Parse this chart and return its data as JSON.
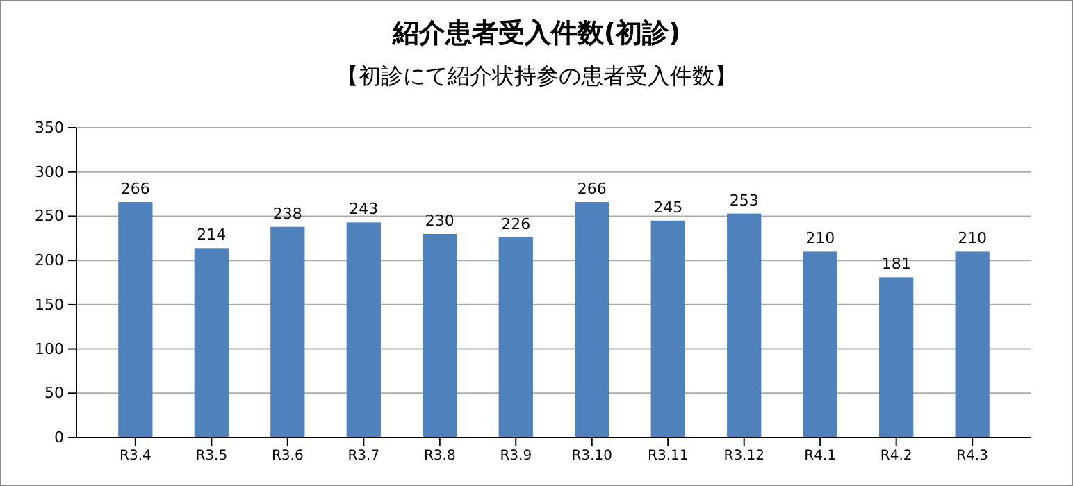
{
  "chart_data": {
    "type": "bar",
    "title": "紹介患者受入件数(初診)",
    "subtitle": "【初診にて紹介状持参の患者受入件数】",
    "categories": [
      "R3.4",
      "R3.5",
      "R3.6",
      "R3.7",
      "R3.8",
      "R3.9",
      "R3.10",
      "R3.11",
      "R3.12",
      "R4.1",
      "R4.2",
      "R4.3"
    ],
    "values": [
      266,
      214,
      238,
      243,
      230,
      226,
      266,
      245,
      253,
      210,
      181,
      210
    ],
    "color": "#4f81bd",
    "ylim": [
      0,
      350
    ],
    "yticks": [
      0,
      50,
      100,
      150,
      200,
      250,
      300,
      350
    ],
    "grid": "y",
    "data_labels": true
  }
}
